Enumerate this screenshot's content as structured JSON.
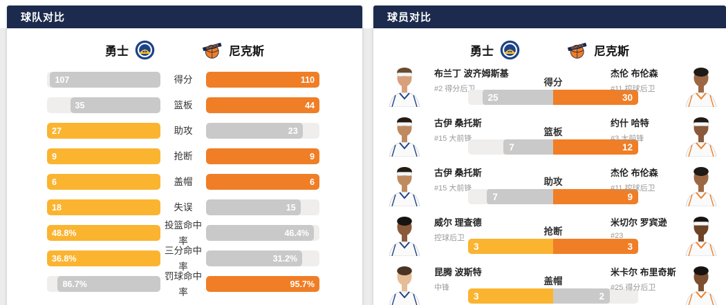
{
  "colors": {
    "header_navy": "#1C2B4D",
    "warriors_gold": "#FBB430",
    "knicks_orange": "#F07E26",
    "bar_gray": "#C9C9C9",
    "bar_track": "#EFEEEC",
    "page_gray": "#ECECEC",
    "warriors_blue": "#1D428A",
    "warriors_yellow": "#FFC72C",
    "knicks_blue": "#13264B"
  },
  "teams": {
    "left": {
      "name": "勇士",
      "logo_icon": "warriors-logo"
    },
    "right": {
      "name": "尼克斯",
      "logo_icon": "knicks-logo"
    }
  },
  "team_panel": {
    "title": "球队对比",
    "rows": [
      {
        "label": "得分",
        "left_value": 107,
        "right_value": 110,
        "left_display": "107",
        "right_display": "110"
      },
      {
        "label": "篮板",
        "left_value": 35,
        "right_value": 44,
        "left_display": "35",
        "right_display": "44"
      },
      {
        "label": "助攻",
        "left_value": 27,
        "right_value": 23,
        "left_display": "27",
        "right_display": "23"
      },
      {
        "label": "抢断",
        "left_value": 9,
        "right_value": 9,
        "left_display": "9",
        "right_display": "9"
      },
      {
        "label": "盖帽",
        "left_value": 6,
        "right_value": 6,
        "left_display": "6",
        "right_display": "6"
      },
      {
        "label": "失误",
        "left_value": 18,
        "right_value": 15,
        "left_display": "18",
        "right_display": "15"
      },
      {
        "label": "投篮命中率",
        "left_value": 48.8,
        "right_value": 46.4,
        "left_display": "48.8%",
        "right_display": "46.4%"
      },
      {
        "label": "三分命中率",
        "left_value": 36.8,
        "right_value": 31.2,
        "left_display": "36.8%",
        "right_display": "31.2%"
      },
      {
        "label": "罚球命中率",
        "left_value": 86.7,
        "right_value": 95.7,
        "left_display": "86.7%",
        "right_display": "95.7%"
      }
    ]
  },
  "player_panel": {
    "title": "球员对比",
    "rows": [
      {
        "label": "得分",
        "left": {
          "name": "布兰丁 波齐姆斯基",
          "sub": "#2 得分后卫",
          "value": 25,
          "display": "25",
          "avatar": {
            "skin": "#D9A07A",
            "hair": "#6B4A2F",
            "headband": true
          }
        },
        "right": {
          "name": "杰伦 布伦森",
          "sub": "#11 控球后卫",
          "value": 30,
          "display": "30",
          "avatar": {
            "skin": "#9C6844",
            "hair": "#1E1A17",
            "headband": false
          }
        }
      },
      {
        "label": "篮板",
        "left": {
          "name": "古伊 桑托斯",
          "sub": "#15 大前锋",
          "value": 7,
          "display": "7",
          "avatar": {
            "skin": "#C08A5F",
            "hair": "#241B13",
            "headband": true
          }
        },
        "right": {
          "name": "约什 哈特",
          "sub": "#3 大前锋",
          "value": 12,
          "display": "12",
          "avatar": {
            "skin": "#8A5A3A",
            "hair": "#1E1A17",
            "headband": true
          }
        }
      },
      {
        "label": "助攻",
        "left": {
          "name": "古伊 桑托斯",
          "sub": "#15 大前锋",
          "value": 7,
          "display": "7",
          "avatar": {
            "skin": "#C08A5F",
            "hair": "#241B13",
            "headband": true
          }
        },
        "right": {
          "name": "杰伦 布伦森",
          "sub": "#11 控球后卫",
          "value": 9,
          "display": "9",
          "avatar": {
            "skin": "#9C6844",
            "hair": "#1E1A17",
            "headband": false
          }
        }
      },
      {
        "label": "抢断",
        "left": {
          "name": "威尔 理查德",
          "sub": "控球后卫",
          "value": 3,
          "display": "3",
          "avatar": {
            "skin": "#8A5A3A",
            "hair": "#171310",
            "headband": false
          }
        },
        "right": {
          "name": "米切尔 罗宾逊",
          "sub": "#23",
          "value": 3,
          "display": "3",
          "avatar": {
            "skin": "#6E4426",
            "hair": "#171310",
            "headband": true
          }
        }
      },
      {
        "label": "盖帽",
        "left": {
          "name": "昆腾 波斯特",
          "sub": "中锋",
          "value": 3,
          "display": "3",
          "avatar": {
            "skin": "#E6BD97",
            "hair": "#4A3524",
            "headband": false
          }
        },
        "right": {
          "name": "米卡尔 布里奇斯",
          "sub": "#25 得分后卫",
          "value": 2,
          "display": "2",
          "avatar": {
            "skin": "#7C4F30",
            "hair": "#171310",
            "headband": false
          }
        }
      }
    ]
  }
}
